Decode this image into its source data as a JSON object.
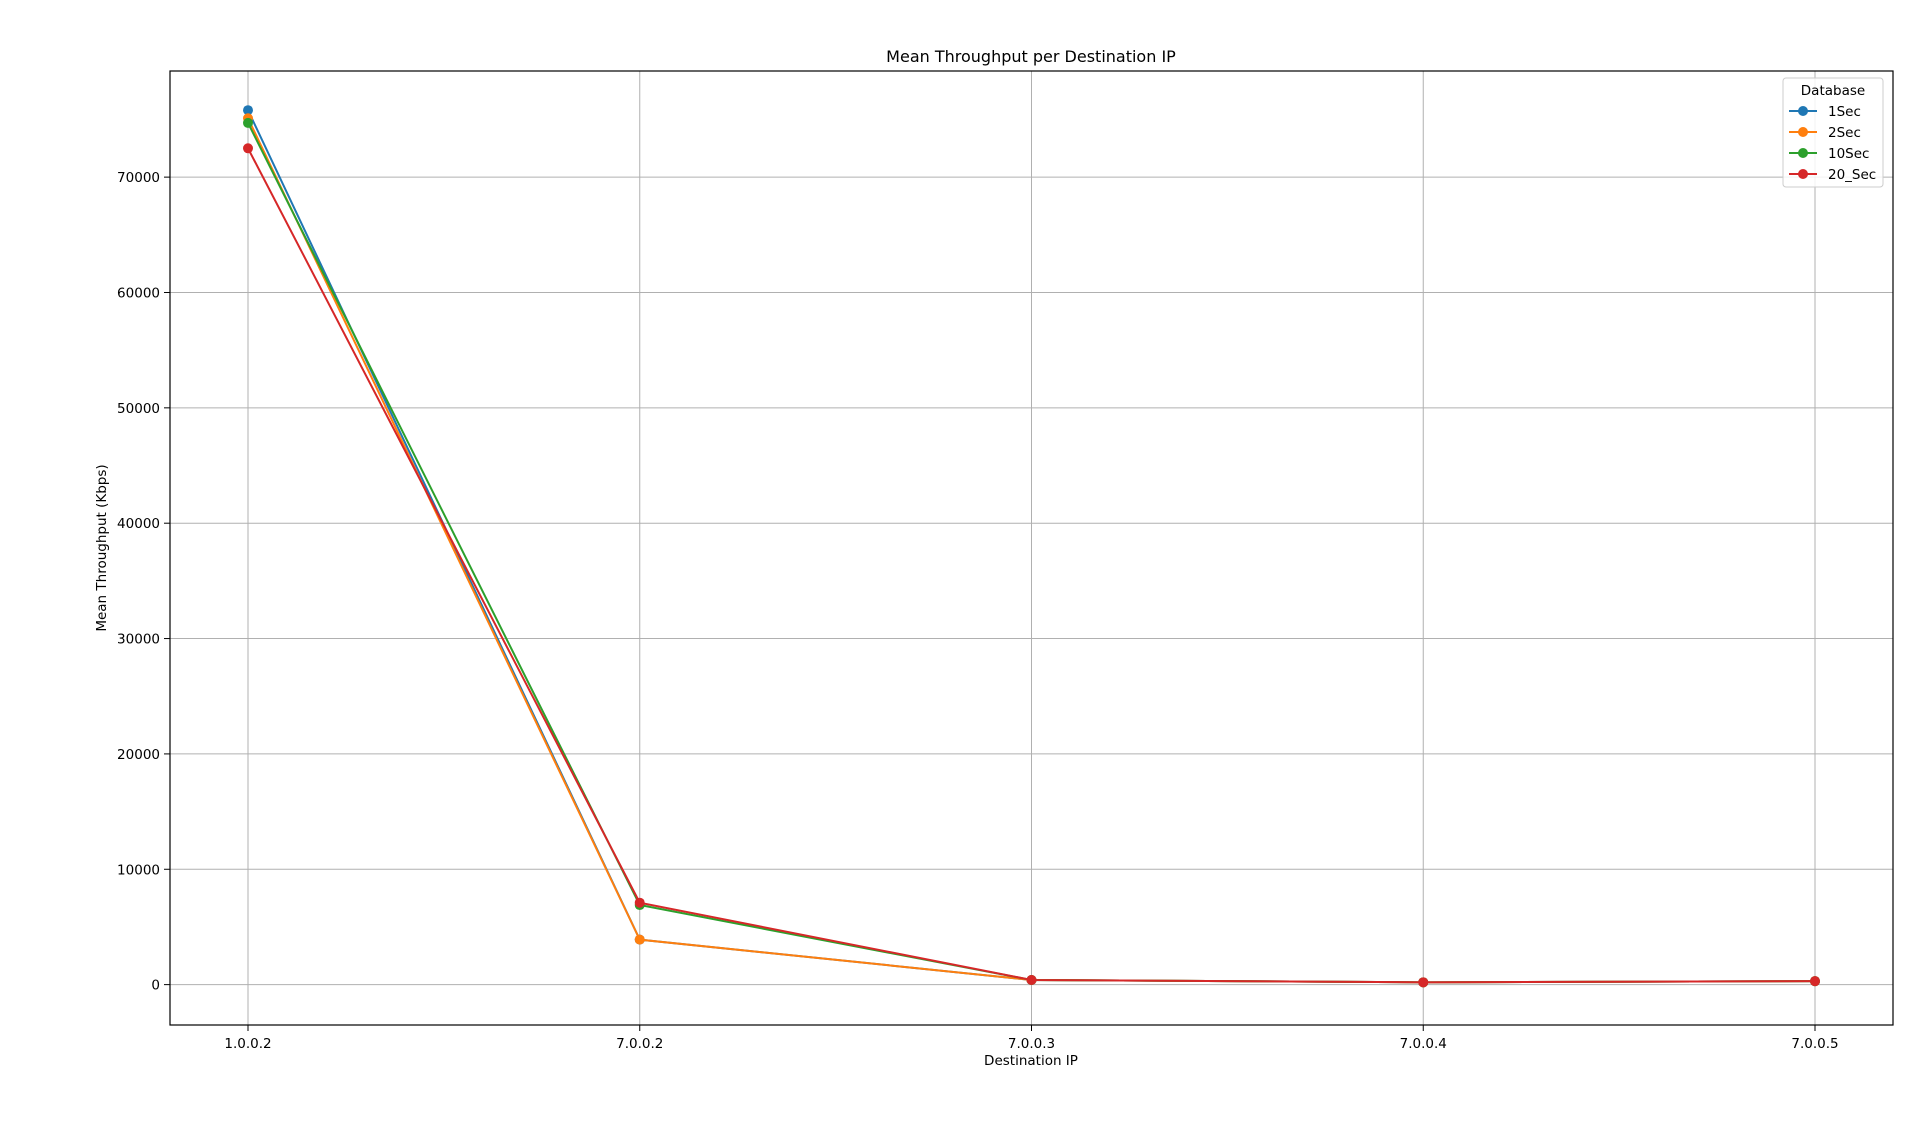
{
  "chart_data": {
    "type": "line",
    "title": "Mean Throughput per Destination IP",
    "xlabel": "Destination IP",
    "ylabel": "Mean Throughput (Kbps)",
    "categories": [
      "1.0.0.2",
      "7.0.0.2",
      "7.0.0.3",
      "7.0.0.4",
      "7.0.0.5"
    ],
    "ylim": [
      -3500,
      79200
    ],
    "yticks": [
      0,
      10000,
      20000,
      30000,
      40000,
      50000,
      60000,
      70000
    ],
    "grid": true,
    "legend": {
      "title": "Database",
      "position": "top-right"
    },
    "series": [
      {
        "name": "1Sec",
        "color": "#1f77b4",
        "values": [
          75800,
          3900,
          400,
          200,
          300
        ]
      },
      {
        "name": "2Sec",
        "color": "#ff7f0e",
        "values": [
          75100,
          3900,
          400,
          200,
          300
        ]
      },
      {
        "name": "10Sec",
        "color": "#2ca02c",
        "values": [
          74700,
          6900,
          400,
          200,
          300
        ]
      },
      {
        "name": "20_Sec",
        "color": "#d62728",
        "values": [
          72500,
          7100,
          400,
          200,
          300
        ]
      }
    ]
  }
}
